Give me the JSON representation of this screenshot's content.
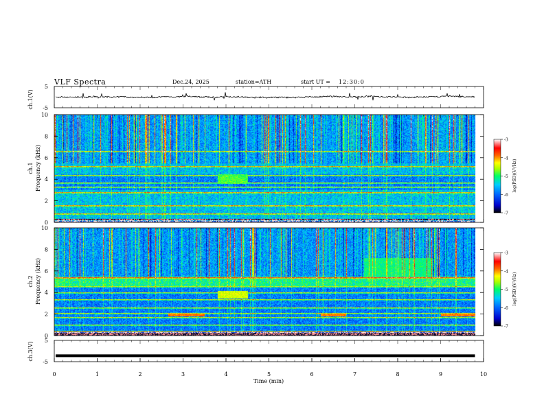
{
  "header": {
    "title": "VLF  Spectra",
    "date": "Dec.24, 2025",
    "station": "station=ATH",
    "start_label": "start  UT  =",
    "start_time": "12:30:0"
  },
  "colors": {
    "colormap": [
      "#000000",
      "#0000cc",
      "#0066ff",
      "#00ccff",
      "#00ff66",
      "#aaff00",
      "#ffff00",
      "#ff6600",
      "#ff0000",
      "#ffffff"
    ]
  },
  "chart_data": [
    {
      "type": "line",
      "panel": "ch1-waveform",
      "ylabel": "ch.1(V)",
      "ylim": [
        -5,
        5
      ],
      "ytick_labels": [
        "5",
        "-5"
      ],
      "x_range_min": [
        0,
        10
      ],
      "data_end_min": 9.8,
      "approx_level_V": 0,
      "noise_amplitude_V": 0.6
    },
    {
      "type": "heatmap",
      "panel": "ch1-spectrogram",
      "ylabel_channel": "ch.1",
      "ylabel": "Frequency (kHz)",
      "ylim": [
        0,
        10
      ],
      "ytick_labels": [
        "0",
        "2",
        "4",
        "6",
        "8",
        "10"
      ],
      "x_range_min": [
        0,
        10
      ],
      "data_end_min": 9.8,
      "colorbar": {
        "label": "log(PSD)(V²/Hz)",
        "range": [
          -7,
          -3
        ],
        "tick_labels": [
          "-3",
          "-4",
          "-5",
          "-6",
          "-7"
        ]
      },
      "features": {
        "persistent_band_kHz": [
          3.0,
          4.5
        ],
        "enhanced_box_min": [
          3.8,
          4.5
        ],
        "enhanced_box_kHz": [
          3.6,
          4.5
        ],
        "horizontal_lines_kHz": [
          0.2,
          0.8,
          1.6,
          2.8,
          3.3,
          3.7,
          4.4,
          5.2,
          6.6
        ]
      }
    },
    {
      "type": "heatmap",
      "panel": "ch2-spectrogram",
      "ylabel_channel": "ch.2",
      "ylabel": "Frequency (kHz)",
      "ylim": [
        0,
        10
      ],
      "ytick_labels": [
        "0",
        "2",
        "4",
        "6",
        "8",
        "10"
      ],
      "x_range_min": [
        0,
        10
      ],
      "data_end_min": 9.8,
      "colorbar": {
        "label": "log(PSD)(V²/Hz)",
        "range": [
          -7,
          -3
        ],
        "tick_labels": [
          "-3",
          "-4",
          "-5",
          "-6",
          "-7"
        ]
      },
      "features": {
        "persistent_band_kHz": [
          0.5,
          4.6
        ],
        "enhanced_box_min": [
          3.8,
          4.5
        ],
        "enhanced_box_kHz": [
          3.5,
          4.2
        ],
        "horizontal_lines_kHz": [
          0.4,
          1.0,
          1.7,
          2.1,
          2.6,
          3.4,
          4.0,
          4.6,
          5.4
        ],
        "segments": [
          {
            "min": [
              2.65,
              3.5
            ],
            "kHz": 1.95
          },
          {
            "min": [
              6.2,
              6.8
            ],
            "kHz": 1.95
          },
          {
            "min": [
              9.0,
              9.8
            ],
            "kHz": 1.95
          }
        ],
        "patch_min": [
          7.2,
          8.8
        ],
        "patch_kHz": [
          5.5,
          7.2
        ]
      }
    },
    {
      "type": "line",
      "panel": "ch3-waveform",
      "ylabel": "ch.3(V)",
      "ylim": [
        -5,
        5
      ],
      "ytick_labels": [
        "5",
        "-5"
      ],
      "xlabel": "Time  (min)",
      "x_range_min": [
        0,
        10
      ],
      "xtick_labels": [
        "0",
        "1",
        "2",
        "3",
        "4",
        "5",
        "6",
        "7",
        "8",
        "9",
        "10"
      ],
      "data_end_min": 9.8,
      "level_V": -2.2
    }
  ]
}
